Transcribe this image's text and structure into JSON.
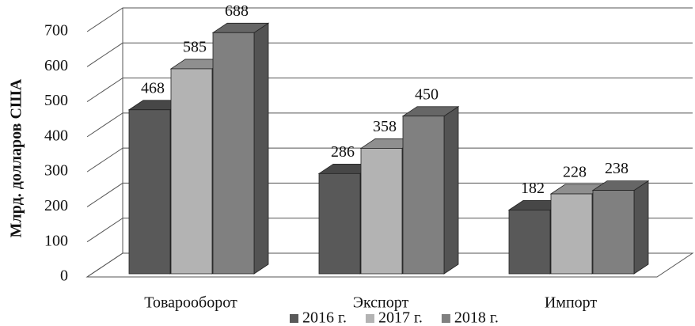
{
  "chart_data": {
    "type": "bar3d",
    "y_label": "Млрд. долларов США",
    "categories": [
      "Товарооборот",
      "Экспорт",
      "Импорт"
    ],
    "series": [
      {
        "name": "2016 г.",
        "color": "#595959",
        "values": [
          468,
          286,
          182
        ]
      },
      {
        "name": "2017 г.",
        "color": "#b3b3b3",
        "values": [
          585,
          358,
          228
        ]
      },
      {
        "name": "2018 г.",
        "color": "#808080",
        "values": [
          688,
          450,
          238
        ]
      }
    ],
    "ylim": [
      0,
      700
    ],
    "yticks": [
      0,
      100,
      200,
      300,
      400,
      500,
      600,
      700
    ],
    "grid": true,
    "legend": "bottom"
  }
}
